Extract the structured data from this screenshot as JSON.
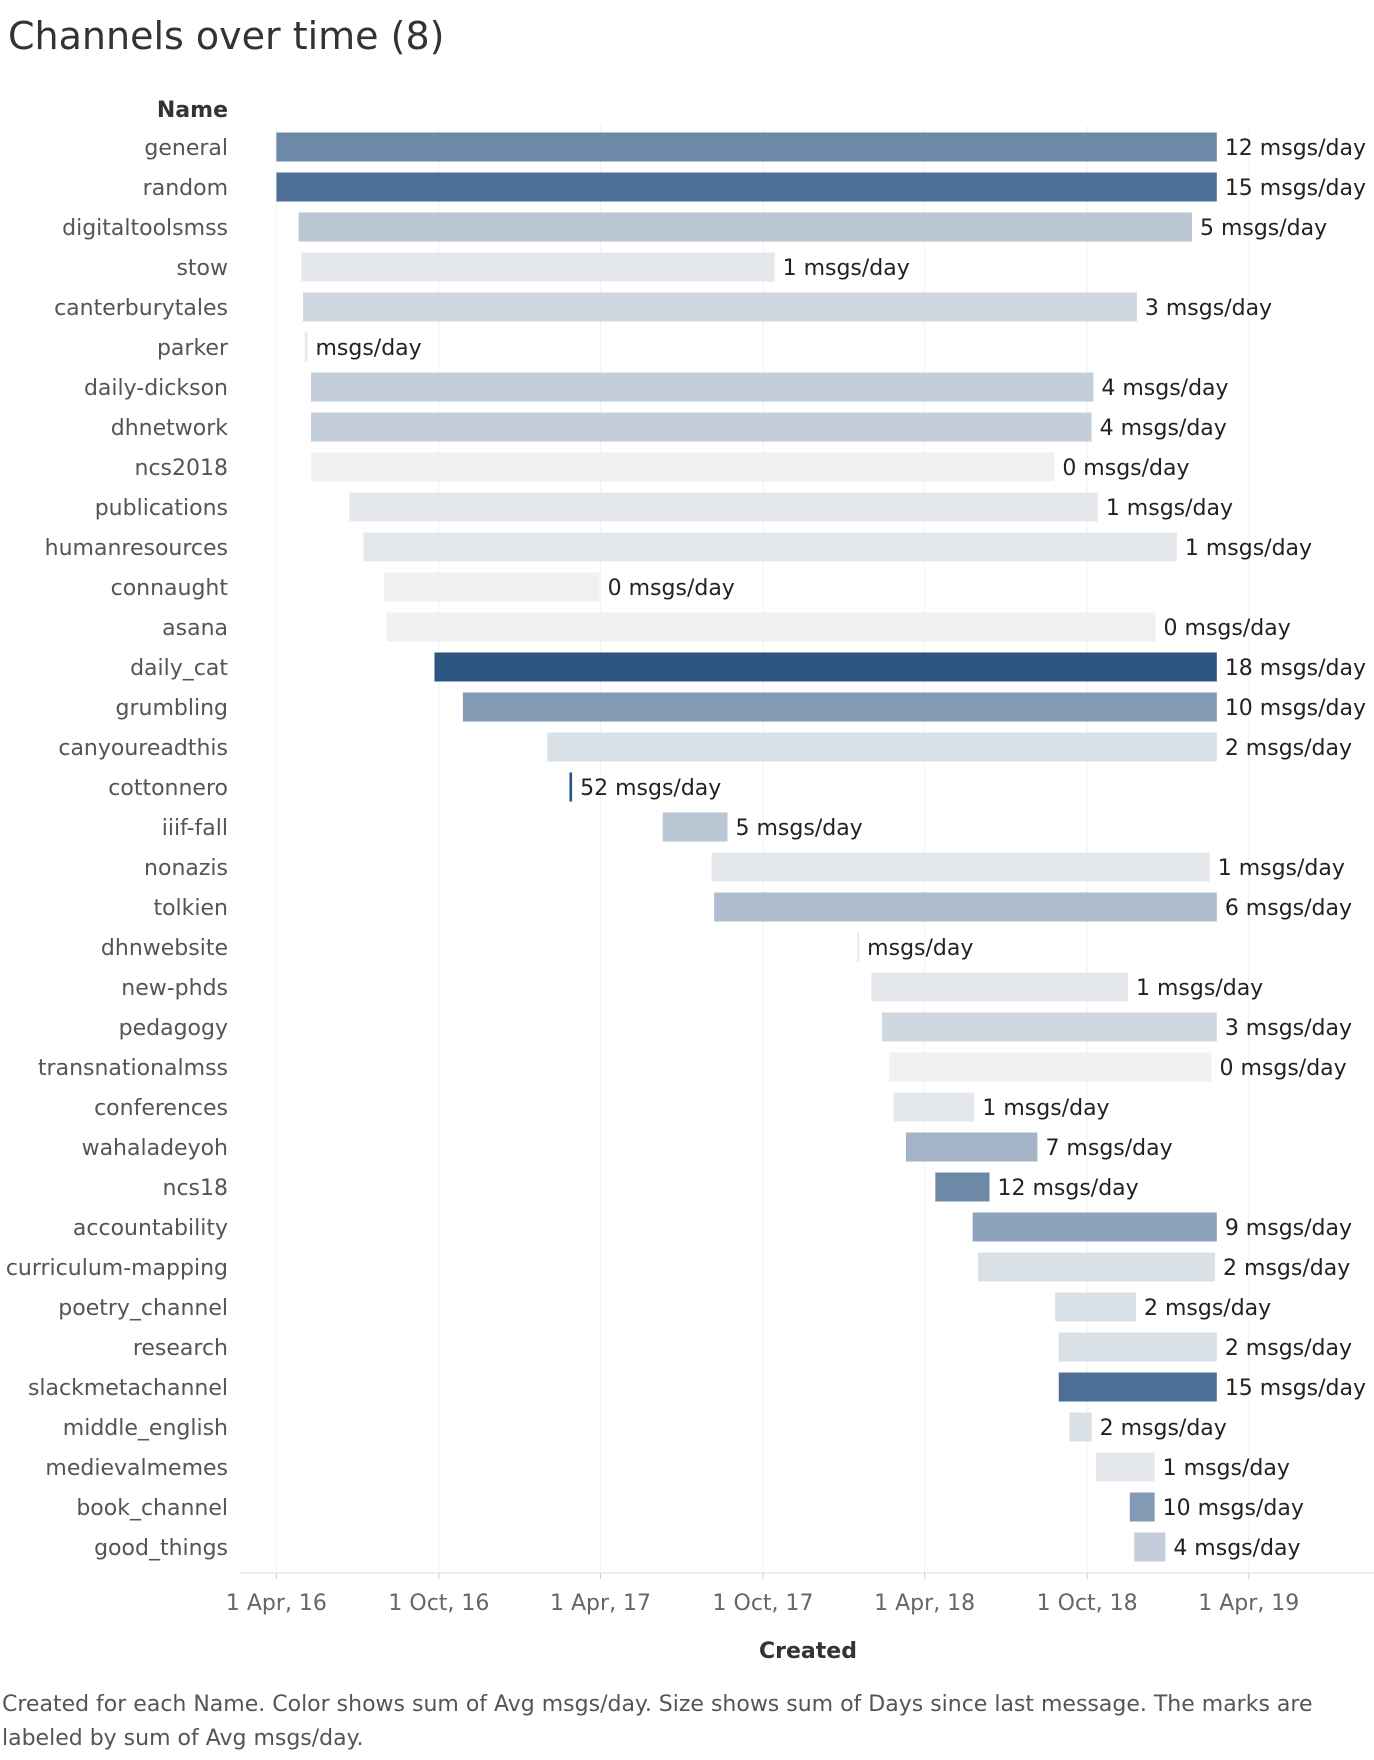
{
  "title": "Channels over time (8)",
  "caption": "Created for each Name.  Color shows sum of Avg msgs/day.  Size shows sum of Days since last message.  The marks are labeled by sum of Avg msgs/day.",
  "chart_data": {
    "type": "bar",
    "orientation": "horizontal-gantt",
    "row_header": "Name",
    "xlabel": "Created",
    "x_ticks": [
      "2016-04-01",
      "2016-10-01",
      "2017-04-01",
      "2017-10-01",
      "2018-04-01",
      "2018-10-01",
      "2019-04-01"
    ],
    "x_tick_labels": [
      "1 Apr, 16",
      "1 Oct, 16",
      "1 Apr, 17",
      "1 Oct, 17",
      "1 Apr, 18",
      "1 Oct, 18",
      "1 Apr, 19"
    ],
    "x_range": [
      "2016-02-20",
      "2019-08-20"
    ],
    "label_suffix": " msgs/day",
    "color_scale": {
      "low": "#eff1f3",
      "high": "#2c5582",
      "min": 0,
      "max": 18
    },
    "rows": [
      {
        "name": "general",
        "start": "2016-04-01",
        "end": "2019-02-24",
        "value": 12
      },
      {
        "name": "random",
        "start": "2016-04-01",
        "end": "2019-02-24",
        "value": 15
      },
      {
        "name": "digitaltoolsmss",
        "start": "2016-04-26",
        "end": "2019-01-27",
        "value": 5
      },
      {
        "name": "stow",
        "start": "2016-04-29",
        "end": "2017-10-14",
        "value": 1
      },
      {
        "name": "canterburytales",
        "start": "2016-05-01",
        "end": "2018-11-26",
        "value": 3
      },
      {
        "name": "parker",
        "start": "2016-05-03",
        "end": "2016-05-06",
        "value": null
      },
      {
        "name": "daily-dickson",
        "start": "2016-05-10",
        "end": "2018-10-08",
        "value": 4
      },
      {
        "name": "dhnetwork",
        "start": "2016-05-10",
        "end": "2018-10-06",
        "value": 4
      },
      {
        "name": "ncs2018",
        "start": "2016-05-10",
        "end": "2018-08-25",
        "value": 0
      },
      {
        "name": "publications",
        "start": "2016-06-22",
        "end": "2018-10-13",
        "value": 1
      },
      {
        "name": "humanresources",
        "start": "2016-07-08",
        "end": "2019-01-10",
        "value": 1
      },
      {
        "name": "connaught",
        "start": "2016-07-31",
        "end": "2017-03-31",
        "value": 0
      },
      {
        "name": "asana",
        "start": "2016-08-03",
        "end": "2018-12-17",
        "value": 0
      },
      {
        "name": "daily_cat",
        "start": "2016-09-26",
        "end": "2019-02-24",
        "value": 18
      },
      {
        "name": "grumbling",
        "start": "2016-10-28",
        "end": "2019-02-24",
        "value": 10
      },
      {
        "name": "canyoureadthis",
        "start": "2017-01-31",
        "end": "2019-02-24",
        "value": 2
      },
      {
        "name": "cottonnero",
        "start": "2017-02-25",
        "end": "2017-02-28",
        "value": 52
      },
      {
        "name": "iiif-fall",
        "start": "2017-06-10",
        "end": "2017-08-22",
        "value": 5
      },
      {
        "name": "nonazis",
        "start": "2017-08-04",
        "end": "2019-02-16",
        "value": 1
      },
      {
        "name": "tolkien",
        "start": "2017-08-07",
        "end": "2019-02-24",
        "value": 6
      },
      {
        "name": "dhnwebsite",
        "start": "2018-01-15",
        "end": "2018-01-17",
        "value": null
      },
      {
        "name": "new-phds",
        "start": "2018-01-31",
        "end": "2018-11-16",
        "value": 1
      },
      {
        "name": "pedagogy",
        "start": "2018-02-12",
        "end": "2019-02-24",
        "value": 3
      },
      {
        "name": "transnationalmss",
        "start": "2018-02-20",
        "end": "2019-02-18",
        "value": 0
      },
      {
        "name": "conferences",
        "start": "2018-02-25",
        "end": "2018-05-27",
        "value": 1
      },
      {
        "name": "wahaladeyoh",
        "start": "2018-03-11",
        "end": "2018-08-06",
        "value": 7
      },
      {
        "name": "ncs18",
        "start": "2018-04-13",
        "end": "2018-06-13",
        "value": 12
      },
      {
        "name": "accountability",
        "start": "2018-05-25",
        "end": "2019-02-24",
        "value": 9
      },
      {
        "name": "curriculum-mapping",
        "start": "2018-05-31",
        "end": "2019-02-22",
        "value": 2
      },
      {
        "name": "poetry_channel",
        "start": "2018-08-26",
        "end": "2018-11-25",
        "value": 2
      },
      {
        "name": "research",
        "start": "2018-08-30",
        "end": "2019-02-24",
        "value": 2
      },
      {
        "name": "slackmetachannel",
        "start": "2018-08-30",
        "end": "2019-02-24",
        "value": 15
      },
      {
        "name": "middle_english",
        "start": "2018-09-11",
        "end": "2018-10-06",
        "value": 2
      },
      {
        "name": "medievalmemes",
        "start": "2018-10-11",
        "end": "2018-12-16",
        "value": 1
      },
      {
        "name": "book_channel",
        "start": "2018-11-18",
        "end": "2018-12-16",
        "value": 10
      },
      {
        "name": "good_things",
        "start": "2018-11-23",
        "end": "2018-12-28",
        "value": 4
      }
    ]
  }
}
